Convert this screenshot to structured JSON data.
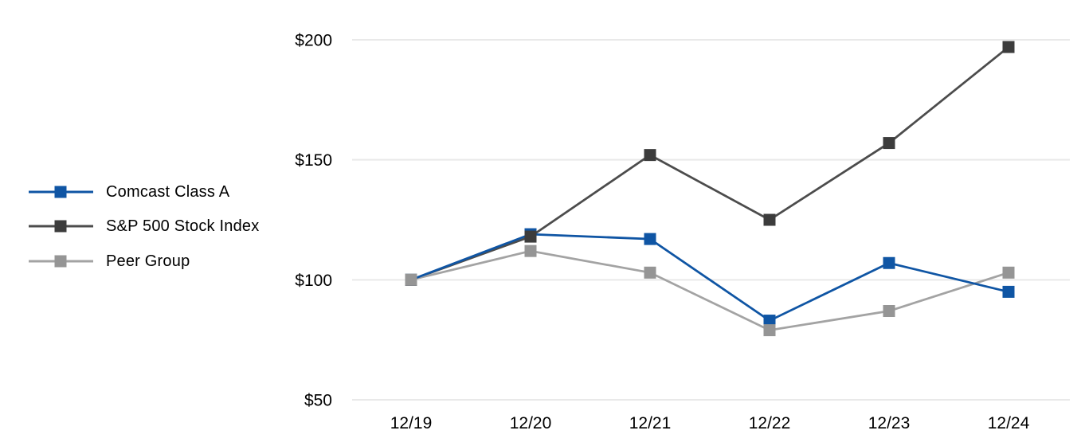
{
  "chart_data": {
    "type": "line",
    "title": "",
    "xlabel": "",
    "ylabel": "",
    "x_categories": [
      "12/19",
      "12/20",
      "12/21",
      "12/22",
      "12/23",
      "12/24"
    ],
    "y_ticks": [
      {
        "label": "$200",
        "value": 200
      },
      {
        "label": "$150",
        "value": 150
      },
      {
        "label": "$100",
        "value": 100
      },
      {
        "label": "$50",
        "value": 50
      }
    ],
    "ylim": [
      50,
      200
    ],
    "grid": "horizontal-only",
    "legend_position": "left",
    "marker_shape": "square",
    "series": [
      {
        "name": "Comcast Class A",
        "values": [
          100,
          119,
          117,
          83,
          107,
          95
        ],
        "line_color": "#0f55a4",
        "marker_color": "#0f55a4"
      },
      {
        "name": "S&P 500 Stock Index",
        "values": [
          100,
          118,
          152,
          125,
          157,
          197
        ],
        "line_color": "#4c4c4c",
        "marker_color": "#3c3c3c"
      },
      {
        "name": "Peer Group",
        "values": [
          100,
          112,
          103,
          79,
          87,
          103
        ],
        "line_color": "#a3a3a3",
        "marker_color": "#959595"
      }
    ],
    "colors": {
      "gridline": "#e9e9e9",
      "text": "#000000",
      "background": "#ffffff"
    }
  }
}
